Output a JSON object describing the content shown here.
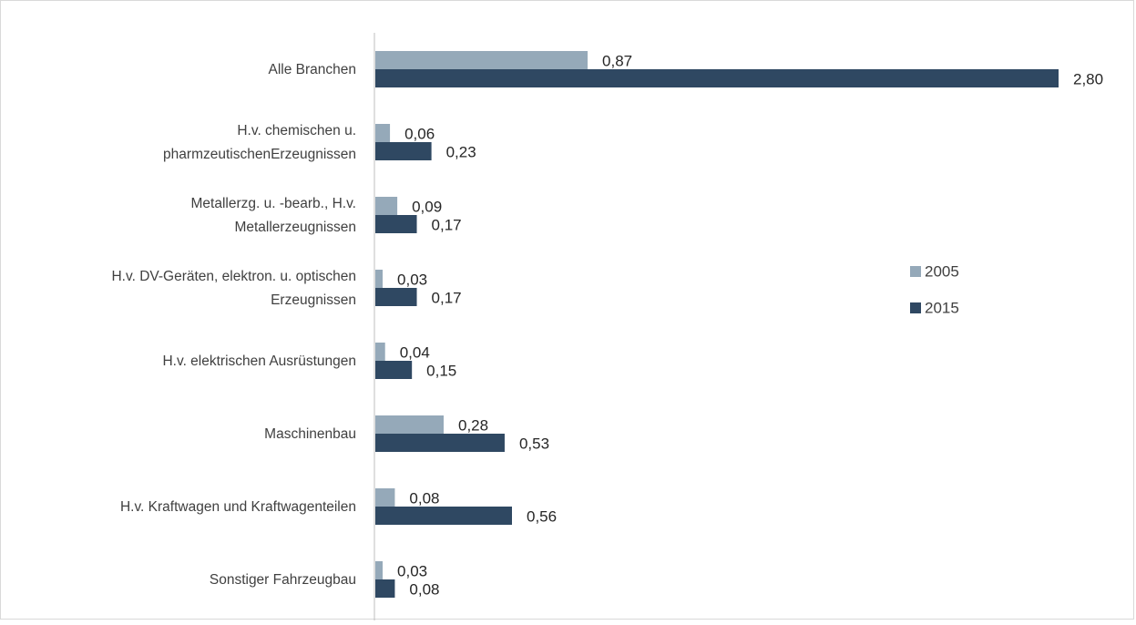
{
  "chart_data": {
    "type": "bar",
    "orientation": "horizontal",
    "categories": [
      [
        "Alle Branchen"
      ],
      [
        "H.v. chemischen u.",
        "pharmzeutischenErzeugnissen"
      ],
      [
        "Metallerzg. u. -bearb., H.v.",
        "Metallerzeugnissen"
      ],
      [
        "H.v. DV-Geräten, elektron. u. optischen",
        "Erzeugnissen"
      ],
      [
        "H.v. elektrischen Ausrüstungen"
      ],
      [
        "Maschinenbau"
      ],
      [
        "H.v. Kraftwagen und Kraftwagenteilen"
      ],
      [
        "Sonstiger Fahrzeugbau"
      ]
    ],
    "series": [
      {
        "name": "2005",
        "color": "#95a9b9",
        "values": [
          0.87,
          0.06,
          0.09,
          0.03,
          0.04,
          0.28,
          0.08,
          0.03
        ],
        "labels": [
          "0,87",
          "0,06",
          "0,09",
          "0,03",
          "0,04",
          "0,28",
          "0,08",
          "0,03"
        ]
      },
      {
        "name": "2015",
        "color": "#2f4862",
        "values": [
          2.8,
          0.23,
          0.17,
          0.17,
          0.15,
          0.53,
          0.56,
          0.08
        ],
        "labels": [
          "2,80",
          "0,23",
          "0,17",
          "0,17",
          "0,15",
          "0,53",
          "0,56",
          "0,08"
        ]
      }
    ],
    "xlim": [
      0,
      2.8
    ],
    "grid": false,
    "legend_position": "right"
  }
}
